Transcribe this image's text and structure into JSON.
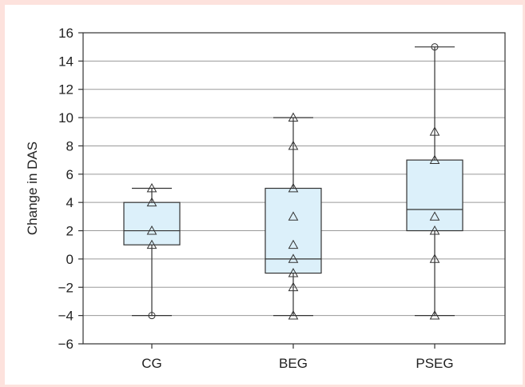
{
  "chart_data": {
    "type": "box",
    "title": "",
    "xlabel": "",
    "ylabel": "Change in DAS",
    "ylim": [
      -6,
      16
    ],
    "yticks": [
      -6,
      -4,
      -2,
      0,
      2,
      4,
      6,
      8,
      10,
      12,
      14,
      16
    ],
    "ytick_labels": [
      "−6",
      "−4",
      "−2",
      "0",
      "2",
      "4",
      "6",
      "8",
      "10",
      "12",
      "14",
      "16"
    ],
    "grid": true,
    "categories": [
      "CG",
      "BEG",
      "PSEG"
    ],
    "boxes": [
      {
        "category": "CG",
        "whisker_low": -4,
        "q1": 1,
        "median": 2,
        "q3": 4,
        "whisker_high": 5,
        "points": [
          5,
          4,
          2,
          1
        ],
        "outliers": [
          -4
        ]
      },
      {
        "category": "BEG",
        "whisker_low": -4,
        "q1": -1,
        "median": 0,
        "q3": 5,
        "whisker_high": 10,
        "points": [
          10,
          8,
          5,
          3,
          1,
          0,
          -1,
          -2,
          -4
        ],
        "outliers": []
      },
      {
        "category": "PSEG",
        "whisker_low": -4,
        "q1": 2,
        "median": 3.5,
        "q3": 7,
        "whisker_high": 15,
        "points": [
          9,
          7,
          3,
          2,
          0,
          -4
        ],
        "outliers": [
          15
        ]
      }
    ],
    "colors": {
      "box_fill": "#dcf0fa",
      "line": "#333333",
      "grid": "#9a9a9a",
      "background": "#fde2dd"
    }
  }
}
